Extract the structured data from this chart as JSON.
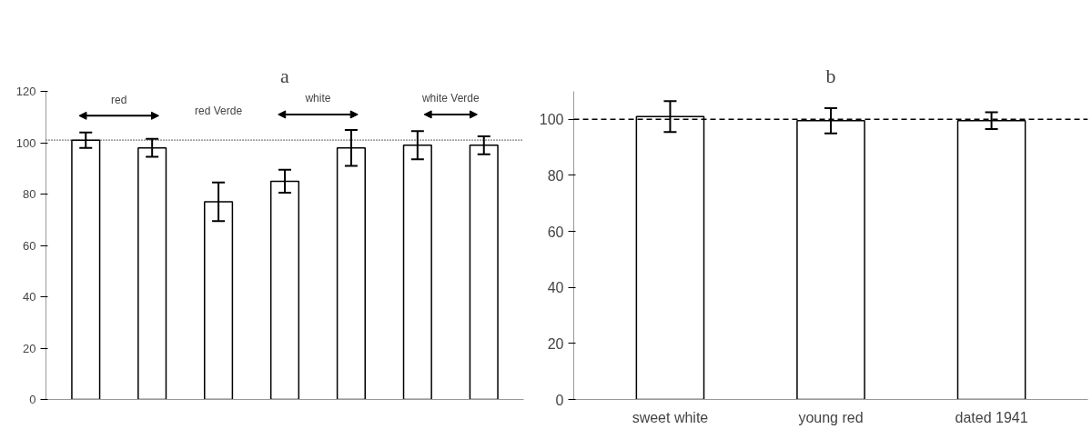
{
  "chart_data": [
    {
      "type": "bar",
      "title": "a",
      "categories": [
        null,
        null,
        null,
        null,
        null,
        null,
        null
      ],
      "values": [
        101,
        98,
        77,
        85,
        98,
        99,
        99
      ],
      "errors": [
        3,
        3.5,
        7.5,
        4.5,
        7,
        5.5,
        3.5
      ],
      "color": "#ffffff",
      "ylim": [
        0,
        120
      ],
      "yticks": [
        0,
        20,
        40,
        60,
        80,
        100,
        120
      ],
      "ref_lines": [
        {
          "axis": "y",
          "value": 101,
          "line_style": "dotted",
          "color": "#000000"
        }
      ],
      "annotations": [
        "red",
        "red Verde",
        "white",
        "white Verde"
      ]
    },
    {
      "type": "bar",
      "title": "b",
      "categories": [
        "sweet white",
        "young red",
        "dated 1941"
      ],
      "values": [
        101,
        99.5,
        99.5
      ],
      "errors": [
        5.5,
        4.5,
        3
      ],
      "color": "#ffffff",
      "ylim": [
        0,
        110
      ],
      "yticks": [
        0,
        20,
        40,
        60,
        80,
        100
      ],
      "ref_lines": [
        {
          "axis": "y",
          "value": 100,
          "line_style": "dashed",
          "color": "#000000"
        }
      ]
    }
  ]
}
